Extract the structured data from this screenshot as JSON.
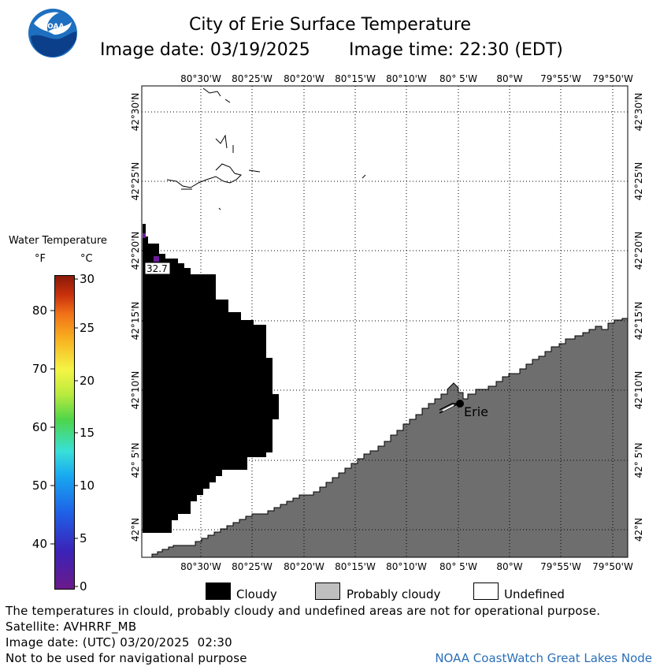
{
  "header": {
    "title": "City of Erie Surface Temperature",
    "date_label": "Image date: 03/19/2025",
    "time_label": "Image time: 22:30 (EDT)"
  },
  "logo": {
    "text": "NOAA"
  },
  "map": {
    "lon_labels": [
      "80°30'W",
      "80°25'W",
      "80°20'W",
      "80°15'W",
      "80°10'W",
      "80° 5'W",
      "80°W",
      "79°55'W",
      "79°50'W"
    ],
    "lat_labels": [
      "42°30'N",
      "42°25'N",
      "42°20'N",
      "42°15'N",
      "42°10'N",
      "42° 5'N",
      "42°N"
    ],
    "city_label": "Erie",
    "temperature_reading": "32.7"
  },
  "colorbar": {
    "title": "Water Temperature",
    "unit_f": "°F",
    "unit_c": "°C",
    "f_ticks": [
      "80",
      "70",
      "60",
      "50",
      "40"
    ],
    "c_ticks": [
      "30",
      "25",
      "20",
      "15",
      "10",
      "5",
      "0"
    ]
  },
  "legend": {
    "cloudy": "Cloudy",
    "probably_cloudy": "Probably cloudy",
    "undefined": "Undefined",
    "colors": {
      "cloudy": "#000000",
      "probably_cloudy": "#bfbfbf",
      "undefined": "#ffffff"
    }
  },
  "footer": {
    "note": "The temperatures in clould, probably cloudy and undefined areas are not for operational purpose.",
    "satellite": "Satellite: AVHRRF_MB",
    "utc_date": "Image date: (UTC) 03/20/2025  02:30",
    "nav_note": "Not to be used for navigational purpose",
    "credit": "NOAA CoastWatch Great Lakes Node"
  },
  "colors": {
    "land": "#6e6e6e",
    "cloud": "#000000",
    "water": "#ffffff",
    "accent": "#2a6fb8"
  }
}
